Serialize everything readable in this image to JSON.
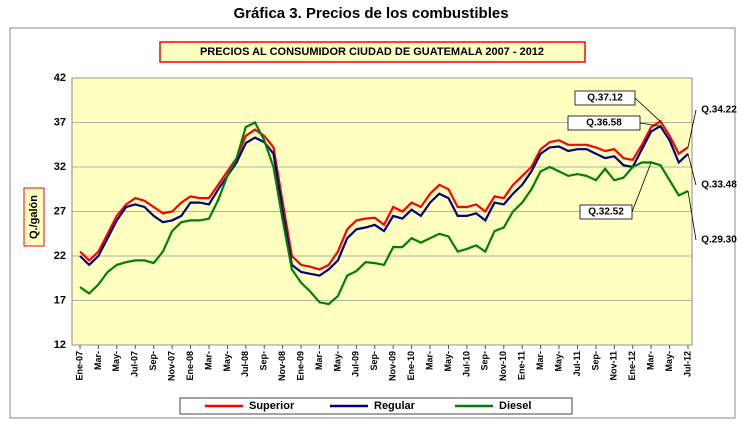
{
  "chart_data": {
    "type": "line",
    "title": "Gráfica 3.  Precios de los combustibles",
    "subtitle": "PRECIOS AL CONSUMIDOR CIUDAD DE GUATEMALA  2007 - 2012",
    "ylabel": "Q./galón",
    "categories": [
      "Ene-07",
      null,
      "Mar-",
      null,
      "May-",
      null,
      "Jul-07",
      null,
      "Sep-",
      null,
      "Nov-07",
      null,
      "Ene-08",
      null,
      "Mar-",
      null,
      "May-",
      null,
      "Jul-08",
      null,
      "Sep-",
      null,
      "Nov-08",
      null,
      "Ene-09",
      null,
      "Mar-",
      null,
      "May-",
      null,
      "Jul-09",
      null,
      "Sep-",
      null,
      "Nov-09",
      null,
      "Ene-10",
      null,
      "Mar-",
      null,
      "May-",
      null,
      "Jul-10",
      null,
      "Sep-",
      null,
      "Nov-10",
      null,
      "Ene-11",
      null,
      "Mar-",
      null,
      "May-",
      null,
      "Jul-11",
      null,
      "Sep-",
      null,
      "Nov-11",
      null,
      "Ene-12",
      null,
      "Mar-",
      null,
      "May-",
      null,
      "Jul-12"
    ],
    "series": [
      {
        "name": "Superior",
        "color": "#ff0000",
        "values": [
          22.5,
          21.5,
          22.5,
          24.5,
          26.5,
          27.8,
          28.5,
          28.2,
          27.5,
          26.8,
          27,
          28,
          28.7,
          28.5,
          28.5,
          30,
          31.5,
          33,
          35.5,
          36.2,
          35.5,
          34.2,
          28,
          22,
          21,
          20.8,
          20.5,
          21,
          22.5,
          25,
          26,
          26.2,
          26.3,
          25.5,
          27.5,
          27,
          28,
          27.5,
          29,
          30,
          29.5,
          27.5,
          27.5,
          27.8,
          27,
          28.7,
          28.5,
          30,
          31,
          32,
          34,
          34.8,
          35,
          34.5,
          34.5,
          34.5,
          34.2,
          33.8,
          34,
          33,
          32.8,
          34.5,
          36.5,
          37.12,
          35.5,
          33.5,
          34.22
        ]
      },
      {
        "name": "Regular",
        "color": "#000080",
        "values": [
          22,
          21,
          22,
          24,
          26,
          27.5,
          27.8,
          27.5,
          26.5,
          25.8,
          26,
          26.5,
          28,
          28,
          27.8,
          29.5,
          31,
          32.5,
          34.7,
          35.3,
          34.8,
          33.5,
          27,
          21,
          20.2,
          20,
          19.8,
          20.5,
          21.5,
          24,
          25,
          25.2,
          25.5,
          24.8,
          26.5,
          26.2,
          27.2,
          26.5,
          28,
          29,
          28.5,
          26.5,
          26.5,
          26.8,
          26,
          28,
          27.8,
          29,
          30,
          31.5,
          33.5,
          34.2,
          34.3,
          33.8,
          34,
          34,
          33.5,
          33,
          33.2,
          32.2,
          32,
          34,
          36,
          36.58,
          35,
          32.5,
          33.48
        ]
      },
      {
        "name": "Diesel",
        "color": "#008000",
        "values": [
          18.5,
          17.8,
          18.8,
          20.2,
          21,
          21.3,
          21.5,
          21.5,
          21.2,
          22.5,
          24.8,
          25.8,
          26,
          26,
          26.2,
          28.3,
          31,
          33,
          36.5,
          37,
          35,
          32,
          26,
          20.5,
          19,
          18,
          16.8,
          16.6,
          17.5,
          19.8,
          20.3,
          21.3,
          21.2,
          21,
          23,
          23,
          24,
          23.5,
          24,
          24.5,
          24.2,
          22.5,
          22.8,
          23.2,
          22.5,
          24.8,
          25.2,
          27,
          28,
          29.5,
          31.5,
          32,
          31.5,
          31,
          31.2,
          31,
          30.5,
          31.8,
          30.5,
          30.8,
          32,
          32.5,
          32.52,
          32.2,
          30.5,
          28.8,
          29.3
        ]
      }
    ],
    "annotations": [
      "Q.37.12",
      "Q.36.58",
      "Q.34.22",
      "Q.33.48",
      "Q.32.52",
      "Q.29.30"
    ],
    "ylim": [
      12,
      42
    ],
    "yticks": [
      12,
      17,
      22,
      27,
      32,
      37,
      42
    ],
    "grid": true
  }
}
